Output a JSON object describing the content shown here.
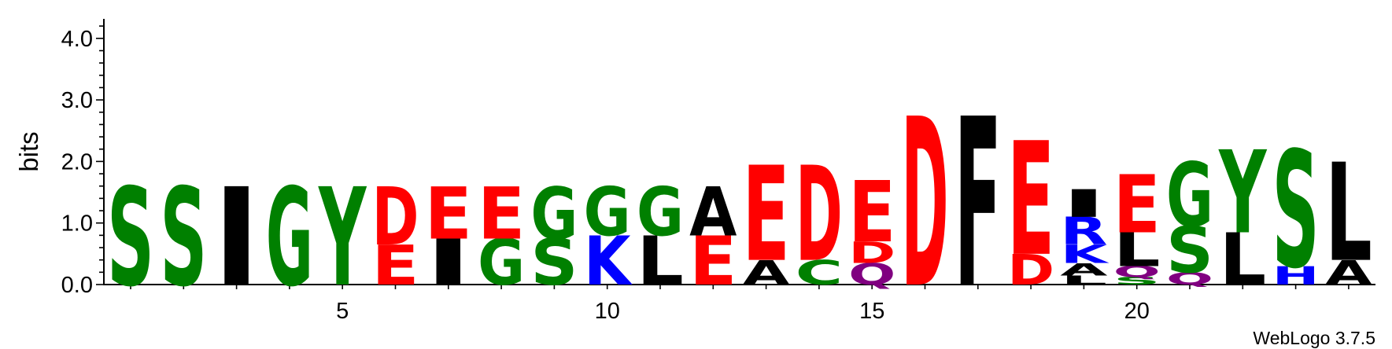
{
  "chart_data": {
    "type": "sequence-logo",
    "ylabel": "bits",
    "xlabel": "",
    "ylim": [
      0,
      4.3
    ],
    "yticks": [
      "0.0",
      "1.0",
      "2.0",
      "3.0",
      "4.0"
    ],
    "ytick_values": [
      0,
      1,
      2,
      3,
      4
    ],
    "xticks": [
      5,
      10,
      15,
      20
    ],
    "x_range": [
      1,
      24
    ],
    "credit": "WebLogo 3.7.5",
    "colors": {
      "red": "#ff0000",
      "green": "#008000",
      "blue": "#0000ff",
      "black": "#000000",
      "purple": "#800080"
    },
    "positions": [
      {
        "pos": 1,
        "stack": [
          {
            "letter": "S",
            "bits": 1.6,
            "color": "green"
          }
        ]
      },
      {
        "pos": 2,
        "stack": [
          {
            "letter": "S",
            "bits": 1.6,
            "color": "green"
          }
        ]
      },
      {
        "pos": 3,
        "stack": [
          {
            "letter": "I",
            "bits": 1.6,
            "color": "black"
          }
        ]
      },
      {
        "pos": 4,
        "stack": [
          {
            "letter": "G",
            "bits": 1.6,
            "color": "green"
          }
        ]
      },
      {
        "pos": 5,
        "stack": [
          {
            "letter": "Y",
            "bits": 1.6,
            "color": "green"
          }
        ]
      },
      {
        "pos": 6,
        "stack": [
          {
            "letter": "E",
            "bits": 0.65,
            "color": "red"
          },
          {
            "letter": "D",
            "bits": 0.95,
            "color": "red"
          }
        ]
      },
      {
        "pos": 7,
        "stack": [
          {
            "letter": "I",
            "bits": 0.75,
            "color": "black"
          },
          {
            "letter": "E",
            "bits": 0.85,
            "color": "red"
          }
        ]
      },
      {
        "pos": 8,
        "stack": [
          {
            "letter": "G",
            "bits": 0.75,
            "color": "green"
          },
          {
            "letter": "E",
            "bits": 0.85,
            "color": "red"
          }
        ]
      },
      {
        "pos": 9,
        "stack": [
          {
            "letter": "S",
            "bits": 0.75,
            "color": "green"
          },
          {
            "letter": "G",
            "bits": 0.85,
            "color": "green"
          }
        ]
      },
      {
        "pos": 10,
        "stack": [
          {
            "letter": "K",
            "bits": 0.8,
            "color": "blue"
          },
          {
            "letter": "G",
            "bits": 0.8,
            "color": "green"
          }
        ]
      },
      {
        "pos": 11,
        "stack": [
          {
            "letter": "L",
            "bits": 0.8,
            "color": "black"
          },
          {
            "letter": "G",
            "bits": 0.8,
            "color": "green"
          }
        ]
      },
      {
        "pos": 12,
        "stack": [
          {
            "letter": "E",
            "bits": 0.8,
            "color": "red"
          },
          {
            "letter": "A",
            "bits": 0.8,
            "color": "black"
          }
        ]
      },
      {
        "pos": 13,
        "stack": [
          {
            "letter": "A",
            "bits": 0.4,
            "color": "black"
          },
          {
            "letter": "E",
            "bits": 1.55,
            "color": "red"
          }
        ]
      },
      {
        "pos": 14,
        "stack": [
          {
            "letter": "C",
            "bits": 0.4,
            "color": "green"
          },
          {
            "letter": "D",
            "bits": 1.55,
            "color": "red"
          }
        ]
      },
      {
        "pos": 15,
        "stack": [
          {
            "letter": "Q",
            "bits": 0.35,
            "color": "purple"
          },
          {
            "letter": "D",
            "bits": 0.35,
            "color": "red"
          },
          {
            "letter": "E",
            "bits": 1.0,
            "color": "red"
          }
        ]
      },
      {
        "pos": 16,
        "stack": [
          {
            "letter": "D",
            "bits": 2.75,
            "color": "red"
          }
        ]
      },
      {
        "pos": 17,
        "stack": [
          {
            "letter": "F",
            "bits": 2.75,
            "color": "black"
          }
        ]
      },
      {
        "pos": 18,
        "stack": [
          {
            "letter": "D",
            "bits": 0.5,
            "color": "red"
          },
          {
            "letter": "E",
            "bits": 1.85,
            "color": "red"
          }
        ]
      },
      {
        "pos": 19,
        "stack": [
          {
            "letter": "L",
            "bits": 0.15,
            "color": "black"
          },
          {
            "letter": "A",
            "bits": 0.2,
            "color": "black"
          },
          {
            "letter": "K",
            "bits": 0.3,
            "color": "blue"
          },
          {
            "letter": "R",
            "bits": 0.45,
            "color": "blue"
          },
          {
            "letter": "I",
            "bits": 0.45,
            "color": "black"
          }
        ]
      },
      {
        "pos": 20,
        "stack": [
          {
            "letter": "S",
            "bits": 0.12,
            "color": "green"
          },
          {
            "letter": "Q",
            "bits": 0.18,
            "color": "purple"
          },
          {
            "letter": "L",
            "bits": 0.55,
            "color": "black"
          },
          {
            "letter": "E",
            "bits": 0.95,
            "color": "red"
          }
        ]
      },
      {
        "pos": 21,
        "stack": [
          {
            "letter": "Q",
            "bits": 0.2,
            "color": "purple"
          },
          {
            "letter": "S",
            "bits": 0.75,
            "color": "green"
          },
          {
            "letter": "G",
            "bits": 1.05,
            "color": "green"
          }
        ]
      },
      {
        "pos": 22,
        "stack": [
          {
            "letter": "L",
            "bits": 0.85,
            "color": "black"
          },
          {
            "letter": "Y",
            "bits": 1.35,
            "color": "green"
          }
        ]
      },
      {
        "pos": 23,
        "stack": [
          {
            "letter": "H",
            "bits": 0.3,
            "color": "blue"
          },
          {
            "letter": "S",
            "bits": 1.9,
            "color": "green"
          }
        ]
      },
      {
        "pos": 24,
        "stack": [
          {
            "letter": "A",
            "bits": 0.4,
            "color": "black"
          },
          {
            "letter": "L",
            "bits": 1.6,
            "color": "black"
          }
        ]
      }
    ]
  }
}
